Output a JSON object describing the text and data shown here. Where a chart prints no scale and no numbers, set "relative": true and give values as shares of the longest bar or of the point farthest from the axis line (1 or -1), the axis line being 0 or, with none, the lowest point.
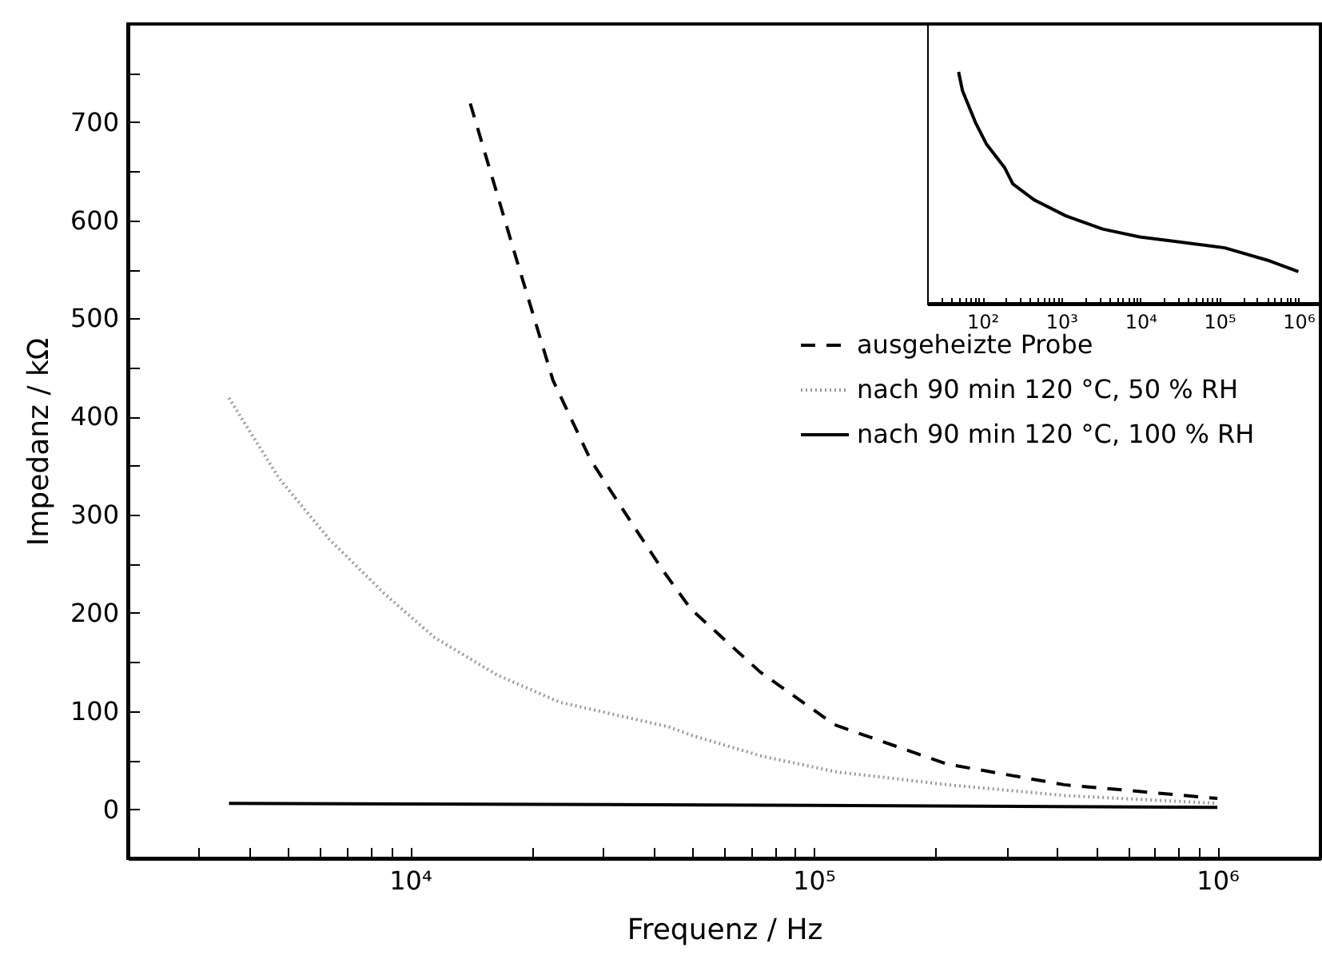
{
  "chart_data": [
    {
      "type": "line",
      "xlabel": "Frequenz / Hz",
      "ylabel": "Impedanz / kΩ",
      "log": "x",
      "legend": "right",
      "xlim": [
        2000,
        1800000
      ],
      "xticks": [
        {
          "value": 2000,
          "label": null
        },
        {
          "value": 3000,
          "label": null
        },
        {
          "value": 4000,
          "label": null
        },
        {
          "value": 5000,
          "label": null
        },
        {
          "value": 6000,
          "label": null
        },
        {
          "value": 7000,
          "label": null
        },
        {
          "value": 8000,
          "label": null
        },
        {
          "value": 9000,
          "label": null
        },
        {
          "value": 10000,
          "label": "10⁴"
        },
        {
          "value": 20000,
          "label": null
        },
        {
          "value": 30000,
          "label": null
        },
        {
          "value": 40000,
          "label": null
        },
        {
          "value": 50000,
          "label": null
        },
        {
          "value": 60000,
          "label": null
        },
        {
          "value": 70000,
          "label": null
        },
        {
          "value": 80000,
          "label": null
        },
        {
          "value": 90000,
          "label": null
        },
        {
          "value": 100000,
          "label": "10⁵"
        },
        {
          "value": 200000,
          "label": null
        },
        {
          "value": 300000,
          "label": null
        },
        {
          "value": 400000,
          "label": null
        },
        {
          "value": 500000,
          "label": null
        },
        {
          "value": 600000,
          "label": null
        },
        {
          "value": 700000,
          "label": null
        },
        {
          "value": 800000,
          "label": null
        },
        {
          "value": 900000,
          "label": null
        },
        {
          "value": 1000000,
          "label": "10⁶"
        }
      ],
      "ylim": [
        -50,
        800
      ],
      "yticks": [
        {
          "value": -50,
          "label": null
        },
        0,
        {
          "value": 50,
          "label": null
        },
        100,
        {
          "value": 150,
          "label": null
        },
        200,
        {
          "value": 250,
          "label": null
        },
        300,
        {
          "value": 350,
          "label": null
        },
        400,
        {
          "value": 450,
          "label": null
        },
        500,
        {
          "value": 550,
          "label": null
        },
        600,
        {
          "value": 650,
          "label": null
        },
        700,
        {
          "value": 750,
          "label": null
        }
      ],
      "series": [
        {
          "name": "ausgeheizte Probe",
          "color": "#000000",
          "line_style": "dashed",
          "x": [
            14100,
            18300,
            22600,
            28000,
            36000,
            42200,
            49600,
            73600,
            112700,
            214000,
            417000,
            1000000
          ],
          "values": [
            719,
            562,
            437,
            356,
            287,
            244,
            204,
            140,
            86,
            46,
            25,
            11
          ]
        },
        {
          "name": "nach 90 min 120 °C, 50 % RH",
          "color": "#999999",
          "line_style": "dotted",
          "x": [
            3560,
            4740,
            6310,
            8670,
            11500,
            16400,
            23500,
            43700,
            50100,
            74500,
            114000,
            214000,
            417000,
            1000000
          ],
          "values": [
            419,
            337,
            275,
            219,
            175,
            137,
            109,
            84,
            75,
            54,
            38,
            25,
            14,
            6
          ]
        },
        {
          "name": "nach 90 min 120 °C, 100 % RH",
          "color": "#000000",
          "line_style": "solid",
          "x": [
            3560,
            100000,
            1000000
          ],
          "values": [
            6,
            4,
            2
          ]
        }
      ]
    },
    {
      "type": "line",
      "log": "x",
      "relative": true,
      "xlim": [
        20,
        1900000
      ],
      "xticks": [
        {
          "value": 30,
          "label": null
        },
        {
          "value": 40,
          "label": null
        },
        {
          "value": 50,
          "label": null
        },
        {
          "value": 60,
          "label": null
        },
        {
          "value": 70,
          "label": null
        },
        {
          "value": 80,
          "label": null
        },
        {
          "value": 90,
          "label": null
        },
        {
          "value": 100,
          "label": "10²"
        },
        {
          "value": 200,
          "label": null
        },
        {
          "value": 300,
          "label": null
        },
        {
          "value": 400,
          "label": null
        },
        {
          "value": 500,
          "label": null
        },
        {
          "value": 600,
          "label": null
        },
        {
          "value": 700,
          "label": null
        },
        {
          "value": 800,
          "label": null
        },
        {
          "value": 900,
          "label": null
        },
        {
          "value": 1000,
          "label": "10³"
        },
        {
          "value": 2000,
          "label": null
        },
        {
          "value": 3000,
          "label": null
        },
        {
          "value": 4000,
          "label": null
        },
        {
          "value": 5000,
          "label": null
        },
        {
          "value": 6000,
          "label": null
        },
        {
          "value": 7000,
          "label": null
        },
        {
          "value": 8000,
          "label": null
        },
        {
          "value": 9000,
          "label": null
        },
        {
          "value": 10000,
          "label": "10⁴"
        },
        {
          "value": 20000,
          "label": null
        },
        {
          "value": 30000,
          "label": null
        },
        {
          "value": 40000,
          "label": null
        },
        {
          "value": 50000,
          "label": null
        },
        {
          "value": 60000,
          "label": null
        },
        {
          "value": 70000,
          "label": null
        },
        {
          "value": 80000,
          "label": null
        },
        {
          "value": 90000,
          "label": null
        },
        {
          "value": 100000,
          "label": "10⁵"
        },
        {
          "value": 200000,
          "label": null
        },
        {
          "value": 300000,
          "label": null
        },
        {
          "value": 400000,
          "label": null
        },
        {
          "value": 500000,
          "label": null
        },
        {
          "value": 600000,
          "label": null
        },
        {
          "value": 700000,
          "label": null
        },
        {
          "value": 800000,
          "label": null
        },
        {
          "value": 900000,
          "label": null
        },
        {
          "value": 1000000,
          "label": "10⁶"
        }
      ],
      "series": [
        {
          "color": "#000000",
          "x": [
            50,
            56,
            82,
            112,
            192,
            243,
            452,
            1140,
            3330,
            9820,
            24800,
            117000,
            402000,
            1000000
          ],
          "values": [
            1,
            0.919,
            0.781,
            0.69,
            0.586,
            0.517,
            0.448,
            0.379,
            0.322,
            0.288,
            0.271,
            0.241,
            0.188,
            0.138
          ]
        }
      ]
    }
  ]
}
